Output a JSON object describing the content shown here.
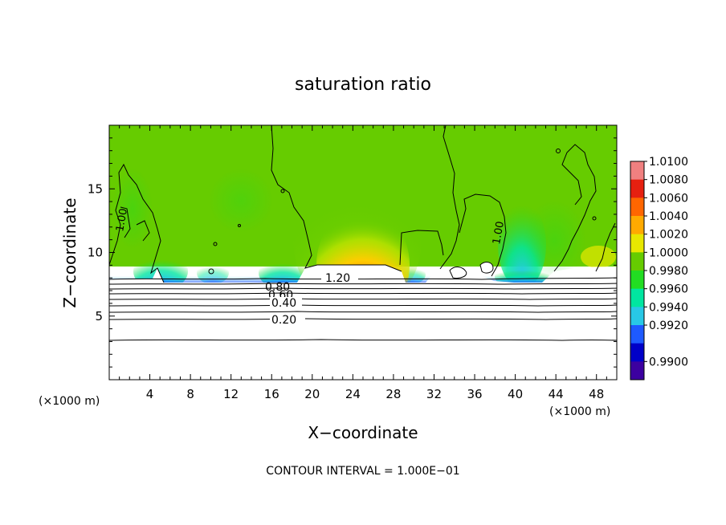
{
  "chart_data": {
    "type": "heatmap",
    "title": "saturation ratio",
    "xlabel": "X−coordinate",
    "ylabel": "Z−coordinate",
    "x_unit": "(×1000 m)",
    "y_unit": "(×1000 m)",
    "xlim": [
      0,
      50
    ],
    "ylim": [
      0,
      20
    ],
    "x_ticks": [
      "4",
      "8",
      "12",
      "16",
      "20",
      "24",
      "28",
      "32",
      "36",
      "40",
      "44",
      "48"
    ],
    "y_ticks": [
      "5",
      "10",
      "15"
    ],
    "contour_labels": [
      "1.20",
      "0.80",
      "0.60",
      "0.40",
      "0.20",
      "1.00",
      "1.00"
    ],
    "colorbar": {
      "levels": [
        "1.0100",
        "1.0080",
        "1.0060",
        "1.0040",
        "1.0020",
        "1.0000",
        "0.9980",
        "0.9960",
        "0.9940",
        "0.9920",
        "0.9900"
      ],
      "colors": [
        "#f08080",
        "#e62010",
        "#ff6600",
        "#ffaa00",
        "#e8e800",
        "#66cc00",
        "#22dd22",
        "#00e6a0",
        "#28c8e6",
        "#1e5aff",
        "#0000c8",
        "#3c00a0"
      ]
    },
    "footnote": "CONTOUR INTERVAL = 1.000E−01"
  }
}
